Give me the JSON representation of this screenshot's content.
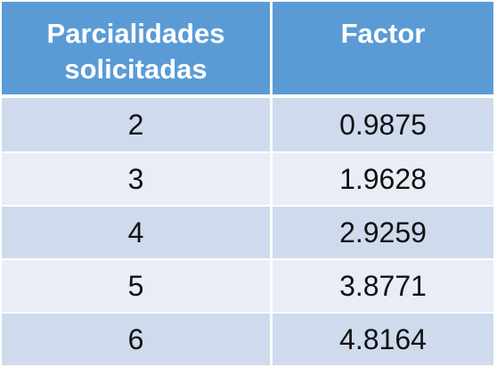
{
  "table": {
    "headers": [
      "Parcialidades solicitadas",
      "Factor"
    ],
    "rows": [
      [
        "2",
        "0.9875"
      ],
      [
        "3",
        "1.9628"
      ],
      [
        "4",
        "2.9259"
      ],
      [
        "5",
        "3.8771"
      ],
      [
        "6",
        "4.8164"
      ]
    ]
  },
  "colors": {
    "header": "#5b9bd5",
    "row_dark": "#cfdaed",
    "row_light": "#e9edf6"
  }
}
